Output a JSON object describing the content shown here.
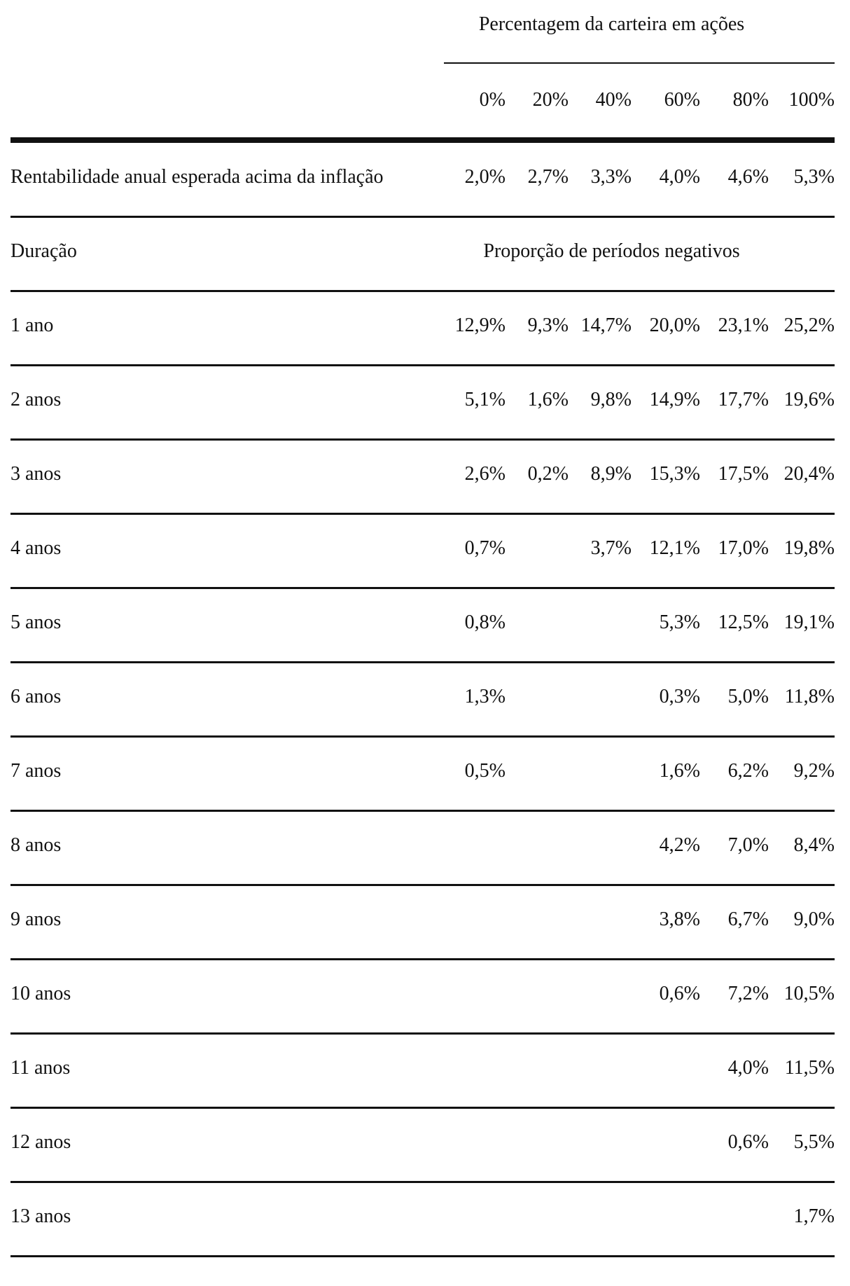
{
  "header": {
    "group_title": "Percentagem da carteira em ações",
    "columns": [
      "0%",
      "20%",
      "40%",
      "60%",
      "80%",
      "100%"
    ]
  },
  "expected_return": {
    "label": "Rentabilidade anual esperada acima da inflação",
    "values": [
      "2,0%",
      "2,7%",
      "3,3%",
      "4,0%",
      "4,6%",
      "5,3%"
    ]
  },
  "section": {
    "duration_label": "Duração",
    "proportion_title": "Proporção de períodos negativos"
  },
  "rows": [
    {
      "label": "1 ano",
      "values": [
        "12,9%",
        "9,3%",
        "14,7%",
        "20,0%",
        "23,1%",
        "25,2%"
      ]
    },
    {
      "label": "2 anos",
      "values": [
        "5,1%",
        "1,6%",
        "9,8%",
        "14,9%",
        "17,7%",
        "19,6%"
      ]
    },
    {
      "label": "3 anos",
      "values": [
        "2,6%",
        "0,2%",
        "8,9%",
        "15,3%",
        "17,5%",
        "20,4%"
      ]
    },
    {
      "label": "4 anos",
      "values": [
        "0,7%",
        "",
        "3,7%",
        "12,1%",
        "17,0%",
        "19,8%"
      ]
    },
    {
      "label": "5 anos",
      "values": [
        "0,8%",
        "",
        "",
        "5,3%",
        "12,5%",
        "19,1%"
      ]
    },
    {
      "label": "6 anos",
      "values": [
        "1,3%",
        "",
        "",
        "0,3%",
        "5,0%",
        "11,8%"
      ]
    },
    {
      "label": "7 anos",
      "values": [
        "0,5%",
        "",
        "",
        "1,6%",
        "6,2%",
        "9,2%"
      ]
    },
    {
      "label": "8 anos",
      "values": [
        "",
        "",
        "",
        "4,2%",
        "7,0%",
        "8,4%"
      ]
    },
    {
      "label": "9 anos",
      "values": [
        "",
        "",
        "",
        "3,8%",
        "6,7%",
        "9,0%"
      ]
    },
    {
      "label": "10 anos",
      "values": [
        "",
        "",
        "",
        "0,6%",
        "7,2%",
        "10,5%"
      ]
    },
    {
      "label": "11 anos",
      "values": [
        "",
        "",
        "",
        "",
        "4,0%",
        "11,5%"
      ]
    },
    {
      "label": "12 anos",
      "values": [
        "",
        "",
        "",
        "",
        "0,6%",
        "5,5%"
      ]
    },
    {
      "label": "13 anos",
      "values": [
        "",
        "",
        "",
        "",
        "",
        "1,7%"
      ]
    }
  ]
}
